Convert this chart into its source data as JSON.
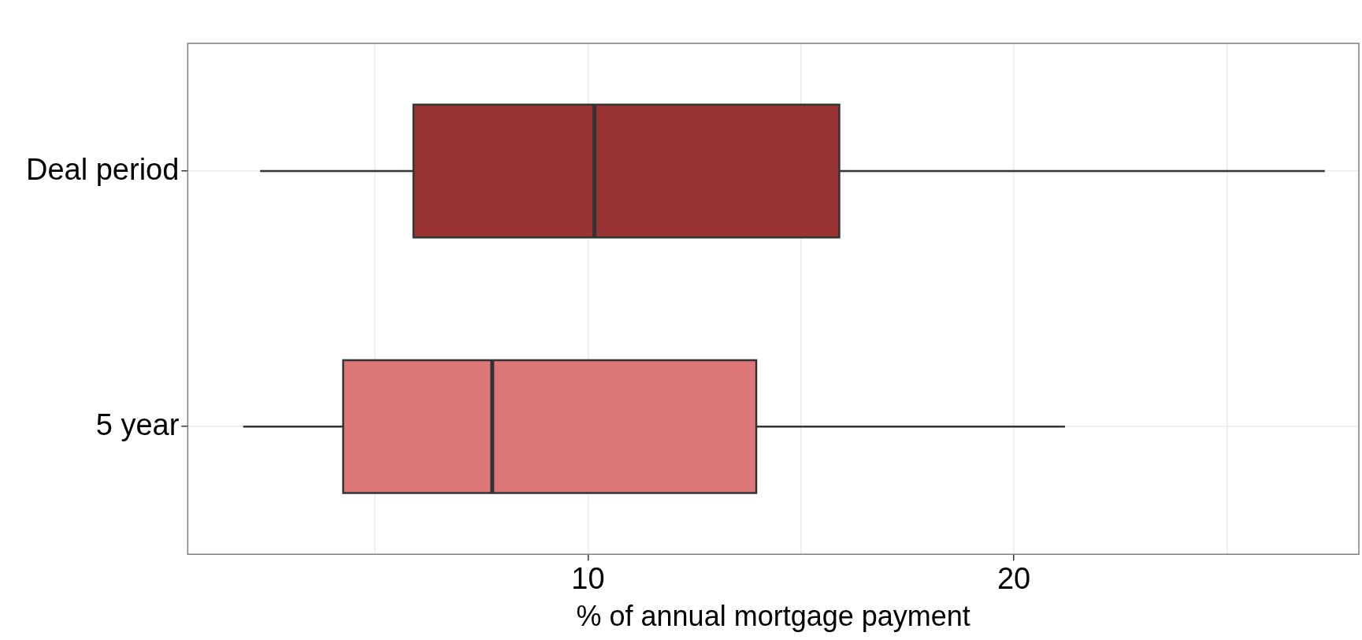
{
  "chart_data": {
    "type": "box",
    "orientation": "horizontal",
    "xlabel": "% of annual mortgage payment",
    "categories": [
      "Deal period",
      "5 year"
    ],
    "colors": [
      "#993333",
      "#de7777"
    ],
    "boxes": [
      {
        "low": 2.3,
        "q1": 5.9,
        "median": 10.15,
        "q3": 15.9,
        "high": 27.3
      },
      {
        "low": 1.9,
        "q1": 4.25,
        "median": 7.75,
        "q3": 13.95,
        "high": 21.2
      }
    ],
    "xlim": [
      0.6,
      28.1
    ],
    "xticks": [
      {
        "value": 5,
        "label": null
      },
      10,
      {
        "value": 15,
        "label": null
      },
      20,
      {
        "value": 25,
        "label": null
      }
    ],
    "grid": true
  }
}
